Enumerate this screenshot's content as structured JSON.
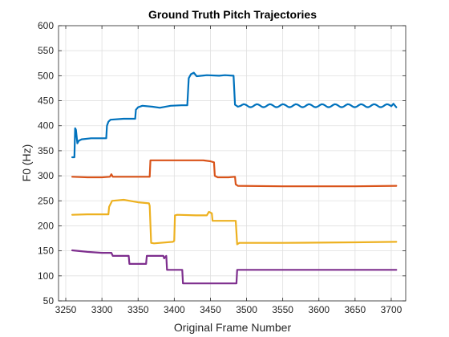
{
  "chart_data": {
    "type": "line",
    "title": "Ground Truth Pitch Trajectories",
    "xlabel": "Original Frame Number",
    "ylabel": "F0 (Hz)",
    "xlim": [
      3240,
      3720
    ],
    "ylim": [
      50,
      600
    ],
    "xticks": [
      3250,
      3300,
      3350,
      3400,
      3450,
      3500,
      3550,
      3600,
      3650,
      3700
    ],
    "yticks": [
      50,
      100,
      150,
      200,
      250,
      300,
      350,
      400,
      450,
      500,
      550,
      600
    ],
    "grid": true,
    "series": [
      {
        "color": "#0072BD",
        "wobble": true,
        "points": [
          [
            3259,
            337
          ],
          [
            3262,
            337
          ],
          [
            3263,
            395
          ],
          [
            3264,
            392
          ],
          [
            3266,
            365
          ],
          [
            3268,
            370
          ],
          [
            3272,
            373
          ],
          [
            3285,
            375
          ],
          [
            3300,
            375
          ],
          [
            3306,
            375
          ],
          [
            3307,
            400
          ],
          [
            3309,
            408
          ],
          [
            3312,
            412
          ],
          [
            3330,
            414
          ],
          [
            3346,
            414
          ],
          [
            3347,
            432
          ],
          [
            3350,
            437
          ],
          [
            3356,
            440
          ],
          [
            3370,
            438
          ],
          [
            3380,
            436
          ],
          [
            3395,
            440
          ],
          [
            3410,
            441
          ],
          [
            3418,
            441
          ],
          [
            3420,
            495
          ],
          [
            3423,
            503
          ],
          [
            3427,
            506
          ],
          [
            3431,
            499
          ],
          [
            3445,
            501
          ],
          [
            3462,
            500
          ],
          [
            3470,
            501
          ],
          [
            3482,
            500
          ],
          [
            3484,
            442
          ],
          [
            3488,
            438
          ],
          [
            3500,
            440
          ],
          [
            3520,
            440
          ],
          [
            3550,
            440
          ],
          [
            3600,
            440
          ],
          [
            3650,
            440
          ],
          [
            3690,
            440
          ],
          [
            3703,
            444
          ],
          [
            3707,
            437
          ]
        ]
      },
      {
        "color": "#D95319",
        "points": [
          [
            3259,
            298
          ],
          [
            3280,
            297
          ],
          [
            3300,
            297
          ],
          [
            3311,
            298
          ],
          [
            3313,
            303
          ],
          [
            3315,
            298
          ],
          [
            3340,
            298
          ],
          [
            3366,
            298
          ],
          [
            3367,
            331
          ],
          [
            3390,
            331
          ],
          [
            3410,
            331
          ],
          [
            3440,
            331
          ],
          [
            3450,
            329
          ],
          [
            3455,
            327
          ],
          [
            3456,
            300
          ],
          [
            3460,
            297
          ],
          [
            3475,
            297
          ],
          [
            3484,
            298
          ],
          [
            3485,
            283
          ],
          [
            3488,
            280
          ],
          [
            3550,
            279
          ],
          [
            3650,
            279
          ],
          [
            3707,
            280
          ]
        ]
      },
      {
        "color": "#EDB120",
        "points": [
          [
            3259,
            222
          ],
          [
            3280,
            223
          ],
          [
            3309,
            223
          ],
          [
            3310,
            238
          ],
          [
            3314,
            250
          ],
          [
            3330,
            252
          ],
          [
            3350,
            247
          ],
          [
            3365,
            245
          ],
          [
            3366,
            240
          ],
          [
            3368,
            166
          ],
          [
            3372,
            165
          ],
          [
            3398,
            168
          ],
          [
            3400,
            170
          ],
          [
            3401,
            221
          ],
          [
            3404,
            222
          ],
          [
            3430,
            221
          ],
          [
            3445,
            221
          ],
          [
            3448,
            228
          ],
          [
            3452,
            225
          ],
          [
            3453,
            210
          ],
          [
            3470,
            210
          ],
          [
            3485,
            210
          ],
          [
            3487,
            163
          ],
          [
            3490,
            166
          ],
          [
            3550,
            166
          ],
          [
            3650,
            167
          ],
          [
            3707,
            168
          ]
        ]
      },
      {
        "color": "#7E2F8E",
        "points": [
          [
            3259,
            151
          ],
          [
            3280,
            148
          ],
          [
            3300,
            146
          ],
          [
            3313,
            146
          ],
          [
            3315,
            140
          ],
          [
            3330,
            140
          ],
          [
            3337,
            140
          ],
          [
            3338,
            124
          ],
          [
            3350,
            124
          ],
          [
            3361,
            124
          ],
          [
            3362,
            140
          ],
          [
            3385,
            140
          ],
          [
            3386,
            135
          ],
          [
            3389,
            140
          ],
          [
            3390,
            112
          ],
          [
            3405,
            112
          ],
          [
            3411,
            112
          ],
          [
            3412,
            85
          ],
          [
            3440,
            85
          ],
          [
            3486,
            85
          ],
          [
            3487,
            112
          ],
          [
            3550,
            112
          ],
          [
            3707,
            112
          ]
        ]
      }
    ]
  }
}
